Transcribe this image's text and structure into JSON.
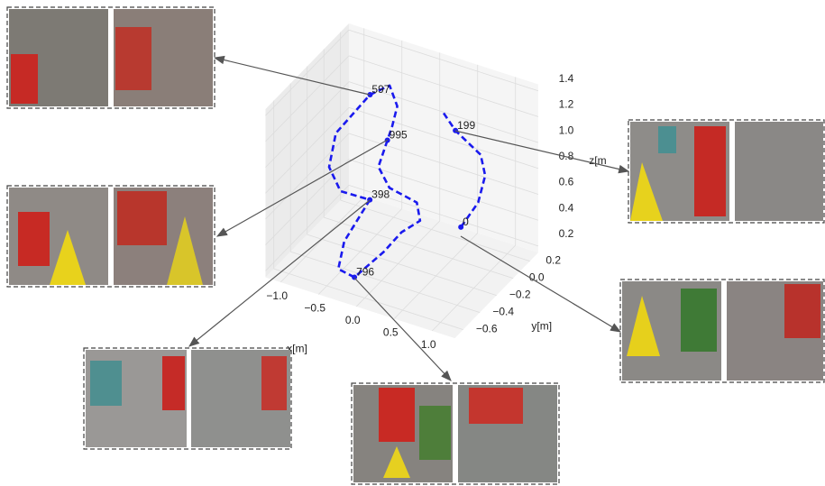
{
  "chart_data": {
    "type": "line3d",
    "xlabel": "x[m]",
    "ylabel": "y[m]",
    "zlabel": "z[m",
    "xlim": [
      -1.2,
      1.3
    ],
    "ylim": [
      -0.7,
      0.3
    ],
    "zlim": [
      0.15,
      1.45
    ],
    "xticks": [
      {
        "value": -1.0,
        "label": "−1.0"
      },
      {
        "value": -0.5,
        "label": "−0.5"
      },
      {
        "value": 0.0,
        "label": "0.0"
      },
      0.5,
      {
        "value": 1.0,
        "label": "1.0"
      }
    ],
    "yticks": [
      0.2,
      {
        "value": 0.0,
        "label": "0.0"
      },
      {
        "value": -0.2,
        "label": "−0.2"
      },
      {
        "value": -0.4,
        "label": "−0.4"
      },
      {
        "value": -0.6,
        "label": "−0.6"
      }
    ],
    "zticks": [
      0.2,
      0.4,
      0.6,
      0.8,
      {
        "value": 1.0,
        "label": "1.0"
      },
      1.2,
      1.4
    ],
    "grid": true,
    "series": [
      {
        "color": "#1a1aee",
        "x": [
          0.4,
          0.65,
          0.71,
          0.65,
          0.35,
          0.2,
          null,
          -0.24,
          -0.26,
          -0.07,
          0.16,
          0.18,
          -0.02,
          -0.07,
          -0.18,
          -0.36,
          -0.38,
          -0.34,
          -0.53,
          -0.69,
          -0.7,
          -0.48,
          -0.31,
          -0.22,
          -0.2,
          -0.24
        ],
        "y": [
          0.19,
          0.17,
          0.2,
          0.2,
          0.17,
          0.14,
          null,
          -0.11,
          -0.2,
          -0.24,
          -0.12,
          -0.1,
          -0.14,
          -0.31,
          -0.56,
          -0.59,
          -0.5,
          -0.23,
          -0.41,
          -0.4,
          -0.31,
          -0.1,
          -0.02,
          -0.01,
          -0.09,
          -0.11
        ],
        "z": [
          0.25,
          0.5,
          0.7,
          0.85,
          1.0,
          1.15,
          null,
          1.0,
          0.85,
          0.75,
          0.6,
          0.45,
          0.35,
          0.3,
          0.25,
          0.3,
          0.45,
          0.6,
          0.75,
          0.9,
          1.1,
          1.3,
          1.35,
          1.2,
          1.1,
          1.0
        ]
      }
    ],
    "annotations": [
      {
        "text": "0",
        "x": 0.4,
        "y": 0.19,
        "z": 0.25
      },
      {
        "text": "199",
        "x": 0.35,
        "y": 0.17,
        "z": 1.0
      },
      {
        "text": "398",
        "x": -0.34,
        "y": -0.23,
        "z": 0.6
      },
      {
        "text": "597",
        "x": -0.48,
        "y": -0.1,
        "z": 1.3
      },
      {
        "text": "796",
        "x": -0.18,
        "y": -0.56,
        "z": 0.25
      },
      {
        "text": "995",
        "x": -0.24,
        "y": -0.11,
        "z": 1.0
      }
    ]
  }
}
